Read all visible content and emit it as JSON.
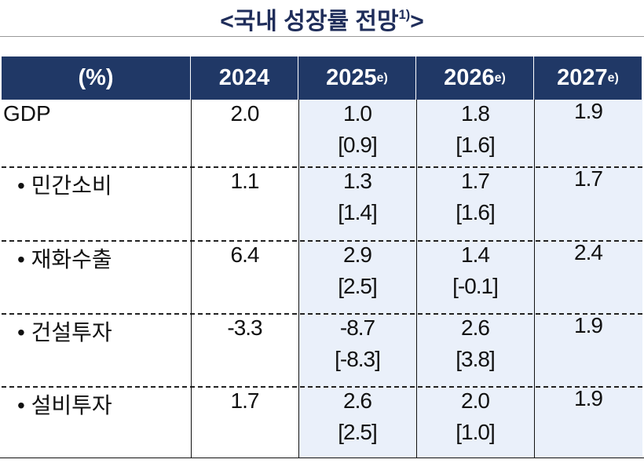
{
  "title": {
    "text": "<국내 성장률 전망",
    "note": "1)",
    "close": ">"
  },
  "table": {
    "header": [
      {
        "text": "(%)"
      },
      {
        "text": "2024"
      },
      {
        "text": "2025",
        "note": "e)"
      },
      {
        "text": "2026",
        "note": "e)"
      },
      {
        "text": "2027",
        "note": "e)"
      }
    ],
    "rows": [
      [
        "GDP",
        "2.0",
        "1.0",
        "[0.9]",
        "1.8",
        "[1.6]",
        "1.9"
      ],
      [
        "• 민간소비",
        "1.1",
        "1.3",
        "[1.4]",
        "1.7",
        "[1.6]",
        "1.7"
      ],
      [
        "• 재화수출",
        "6.4",
        "2.9",
        "[2.5]",
        "1.4",
        "[-0.1]",
        "2.4"
      ],
      [
        "• 건설투자",
        "-3.3",
        "-8.7",
        "[-8.3]",
        "2.6",
        "[3.8]",
        "1.9"
      ],
      [
        "• 설비투자",
        "1.7",
        "2.6",
        "[2.5]",
        "2.0",
        "[1.0]",
        "1.9"
      ]
    ]
  }
}
